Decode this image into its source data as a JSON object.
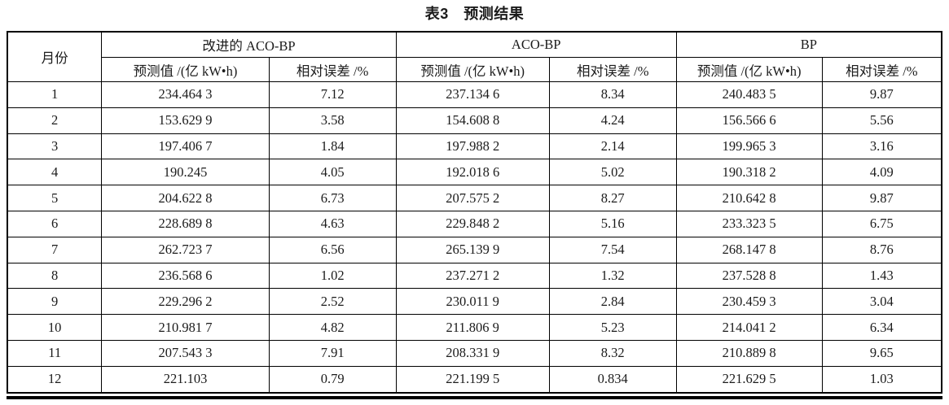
{
  "caption": "表3　预测结果",
  "table": {
    "header": {
      "month": "月份",
      "groups": [
        "改进的 ACO-BP",
        "ACO-BP",
        "BP"
      ],
      "pred_label": "预测值 /(亿 kW•h)",
      "err_label": "相对误差 /%"
    },
    "rows": [
      [
        "1",
        "234.464 3",
        "7.12",
        "237.134 6",
        "8.34",
        "240.483 5",
        "9.87"
      ],
      [
        "2",
        "153.629 9",
        "3.58",
        "154.608 8",
        "4.24",
        "156.566 6",
        "5.56"
      ],
      [
        "3",
        "197.406 7",
        "1.84",
        "197.988 2",
        "2.14",
        "199.965 3",
        "3.16"
      ],
      [
        "4",
        "190.245",
        "4.05",
        "192.018 6",
        "5.02",
        "190.318 2",
        "4.09"
      ],
      [
        "5",
        "204.622 8",
        "6.73",
        "207.575 2",
        "8.27",
        "210.642 8",
        "9.87"
      ],
      [
        "6",
        "228.689 8",
        "4.63",
        "229.848 2",
        "5.16",
        "233.323 5",
        "6.75"
      ],
      [
        "7",
        "262.723 7",
        "6.56",
        "265.139 9",
        "7.54",
        "268.147 8",
        "8.76"
      ],
      [
        "8",
        "236.568 6",
        "1.02",
        "237.271 2",
        "1.32",
        "237.528 8",
        "1.43"
      ],
      [
        "9",
        "229.296 2",
        "2.52",
        "230.011 9",
        "2.84",
        "230.459 3",
        "3.04"
      ],
      [
        "10",
        "210.981 7",
        "4.82",
        "211.806 9",
        "5.23",
        "214.041 2",
        "6.34"
      ],
      [
        "11",
        "207.543 3",
        "7.91",
        "208.331 9",
        "8.32",
        "210.889 8",
        "9.65"
      ],
      [
        "12",
        "221.103",
        "0.79",
        "221.199 5",
        "0.834",
        "221.629 5",
        "1.03"
      ]
    ]
  },
  "chart_data": {
    "type": "table",
    "title": "表3　预测结果",
    "columns": [
      "月份",
      "改进的ACO-BP 预测值/(亿 kW•h)",
      "改进的ACO-BP 相对误差/%",
      "ACO-BP 预测值/(亿 kW•h)",
      "ACO-BP 相对误差/%",
      "BP 预测值/(亿 kW•h)",
      "BP 相对误差/%"
    ],
    "months": [
      1,
      2,
      3,
      4,
      5,
      6,
      7,
      8,
      9,
      10,
      11,
      12
    ],
    "series": [
      {
        "name": "改进的 ACO-BP 预测值",
        "values": [
          234.4643,
          153.6299,
          197.4067,
          190.245,
          204.6228,
          228.6898,
          262.7237,
          236.5686,
          229.2962,
          210.9817,
          207.5433,
          221.103
        ]
      },
      {
        "name": "改进的 ACO-BP 相对误差%",
        "values": [
          7.12,
          3.58,
          1.84,
          4.05,
          6.73,
          4.63,
          6.56,
          1.02,
          2.52,
          4.82,
          7.91,
          0.79
        ]
      },
      {
        "name": "ACO-BP 预测值",
        "values": [
          237.1346,
          154.6088,
          197.9882,
          192.0186,
          207.5752,
          229.8482,
          265.1399,
          237.2712,
          230.0119,
          211.8069,
          208.3319,
          221.1995
        ]
      },
      {
        "name": "ACO-BP 相对误差%",
        "values": [
          8.34,
          4.24,
          2.14,
          5.02,
          8.27,
          5.16,
          7.54,
          1.32,
          2.84,
          5.23,
          8.32,
          0.834
        ]
      },
      {
        "name": "BP 预测值",
        "values": [
          240.4835,
          156.5666,
          199.9653,
          190.3182,
          210.6428,
          233.3235,
          268.1478,
          237.5288,
          230.4593,
          214.0412,
          210.8898,
          221.6295
        ]
      },
      {
        "name": "BP 相对误差%",
        "values": [
          9.87,
          5.56,
          3.16,
          4.09,
          9.87,
          6.75,
          8.76,
          1.43,
          3.04,
          6.34,
          9.65,
          1.03
        ]
      }
    ]
  }
}
